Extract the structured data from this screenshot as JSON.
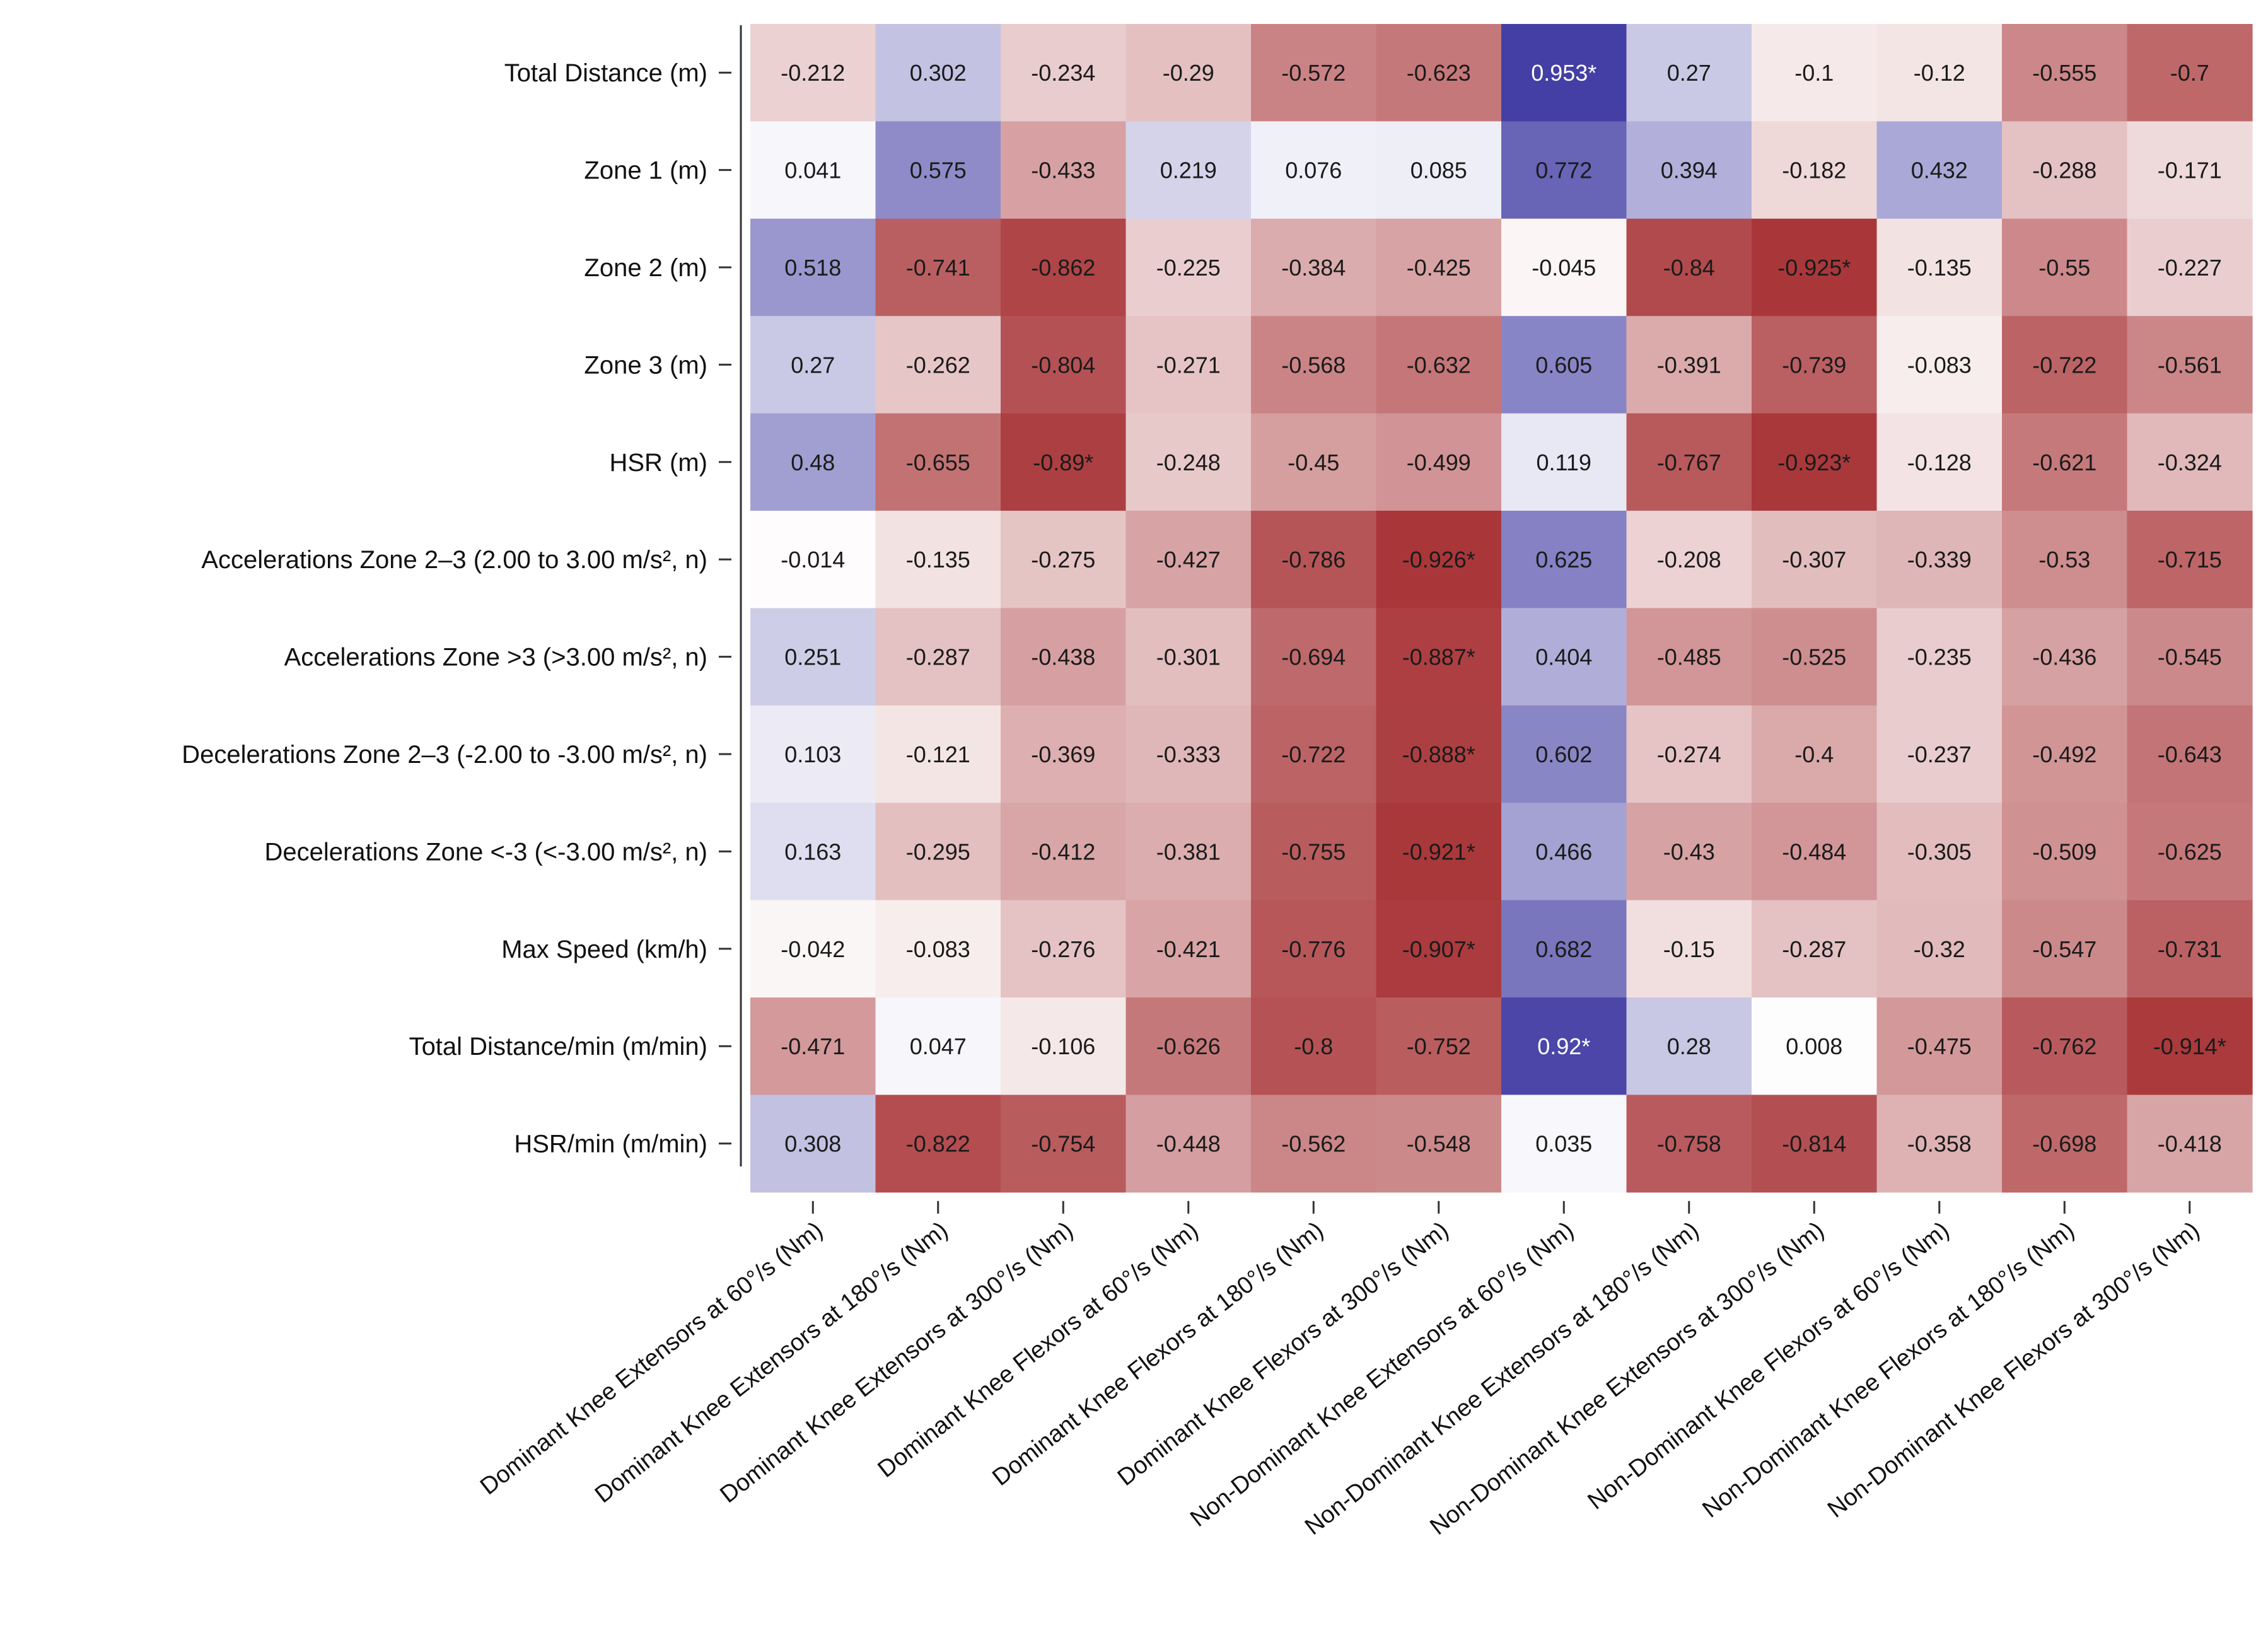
{
  "chart_data": {
    "type": "heatmap",
    "title": "",
    "xlabel": "",
    "ylabel": "",
    "rows": [
      "Total Distance (m)",
      "Zone 1 (m)",
      "Zone 2 (m)",
      "Zone 3 (m)",
      "HSR (m)",
      "Accelerations Zone 2–3 (2.00 to 3.00 m/s², n)",
      "Accelerations Zone >3 (>3.00 m/s², n)",
      "Decelerations Zone 2–3 (-2.00 to -3.00 m/s², n)",
      "Decelerations Zone <-3 (<-3.00 m/s², n)",
      "Max Speed (km/h)",
      "Total Distance/min (m/min)",
      "HSR/min (m/min)"
    ],
    "columns": [
      "Dominant Knee Extensors at 60°/s (Nm)",
      "Dominant Knee Extensors at 180°/s (Nm)",
      "Dominant Knee Extensors at 300°/s (Nm)",
      "Dominant Knee Flexors at 60°/s (Nm)",
      "Dominant Knee Flexors at 180°/s (Nm)",
      "Dominant Knee Flexors at 300°/s (Nm)",
      "Non-Dominant Knee Extensors at 60°/s (Nm)",
      "Non-Dominant Knee Extensors at 180°/s (Nm)",
      "Non-Dominant Knee Extensors at 300°/s (Nm)",
      "Non-Dominant Knee Flexors at 60°/s (Nm)",
      "Non-Dominant Knee Flexors at 180°/s (Nm)",
      "Non-Dominant Knee Flexors at 300°/s (Nm)"
    ],
    "cells": [
      [
        "-0.212",
        "0.302",
        "-0.234",
        "-0.29",
        "-0.572",
        "-0.623",
        "0.953*",
        "0.27",
        "-0.1",
        "-0.12",
        "-0.555",
        "-0.7"
      ],
      [
        "0.041",
        "0.575",
        "-0.433",
        "0.219",
        "0.076",
        "0.085",
        "0.772",
        "0.394",
        "-0.182",
        "0.432",
        "-0.288",
        "-0.171"
      ],
      [
        "0.518",
        "-0.741",
        "-0.862",
        "-0.225",
        "-0.384",
        "-0.425",
        "-0.045",
        "-0.84",
        "-0.925*",
        "-0.135",
        "-0.55",
        "-0.227"
      ],
      [
        "0.27",
        "-0.262",
        "-0.804",
        "-0.271",
        "-0.568",
        "-0.632",
        "0.605",
        "-0.391",
        "-0.739",
        "-0.083",
        "-0.722",
        "-0.561"
      ],
      [
        "0.48",
        "-0.655",
        "-0.89*",
        "-0.248",
        "-0.45",
        "-0.499",
        "0.119",
        "-0.767",
        "-0.923*",
        "-0.128",
        "-0.621",
        "-0.324"
      ],
      [
        "-0.014",
        "-0.135",
        "-0.275",
        "-0.427",
        "-0.786",
        "-0.926*",
        "0.625",
        "-0.208",
        "-0.307",
        "-0.339",
        "-0.53",
        "-0.715"
      ],
      [
        "0.251",
        "-0.287",
        "-0.438",
        "-0.301",
        "-0.694",
        "-0.887*",
        "0.404",
        "-0.485",
        "-0.525",
        "-0.235",
        "-0.436",
        "-0.545"
      ],
      [
        "0.103",
        "-0.121",
        "-0.369",
        "-0.333",
        "-0.722",
        "-0.888*",
        "0.602",
        "-0.274",
        "-0.4",
        "-0.237",
        "-0.492",
        "-0.643"
      ],
      [
        "0.163",
        "-0.295",
        "-0.412",
        "-0.381",
        "-0.755",
        "-0.921*",
        "0.466",
        "-0.43",
        "-0.484",
        "-0.305",
        "-0.509",
        "-0.625"
      ],
      [
        "-0.042",
        "-0.083",
        "-0.276",
        "-0.421",
        "-0.776",
        "-0.907*",
        "0.682",
        "-0.15",
        "-0.287",
        "-0.32",
        "-0.547",
        "-0.731"
      ],
      [
        "-0.471",
        "0.047",
        "-0.106",
        "-0.626",
        "-0.8",
        "-0.752",
        "0.92*",
        "0.28",
        "0.008",
        "-0.475",
        "-0.762",
        "-0.914*"
      ],
      [
        "0.308",
        "-0.822",
        "-0.754",
        "-0.448",
        "-0.562",
        "-0.548",
        "0.035",
        "-0.758",
        "-0.814",
        "-0.358",
        "-0.698",
        "-0.418"
      ]
    ],
    "color_scale": {
      "negative": "#a2272a",
      "zero": "#ffffff",
      "positive": "#3b36a0",
      "range": [
        -1,
        1
      ]
    }
  }
}
